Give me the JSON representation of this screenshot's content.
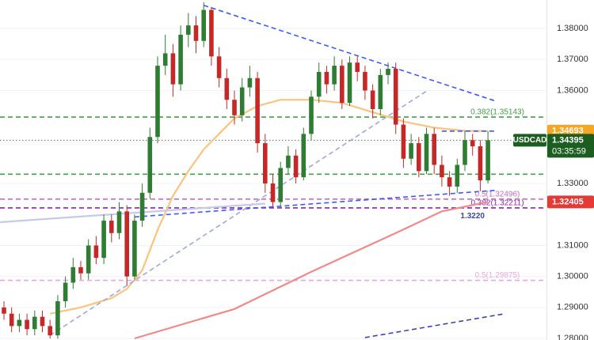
{
  "chart_data": {
    "type": "candlestick",
    "symbol": "USDCAD",
    "colors": {
      "up": "#2e7d32",
      "down": "#c62828"
    },
    "open": [
      1.29,
      1.288,
      1.284,
      1.286,
      1.283,
      1.287,
      1.284,
      1.281,
      1.292,
      1.298,
      1.303,
      1.301,
      1.31,
      1.306,
      1.318,
      1.314,
      1.321,
      1.3,
      1.318,
      1.327,
      1.345,
      1.368,
      1.372,
      1.362,
      1.378,
      1.381,
      1.376,
      1.386,
      1.371,
      1.364,
      1.357,
      1.352,
      1.361,
      1.364,
      1.343,
      1.33,
      1.324,
      1.335,
      1.339,
      1.332,
      1.346,
      1.358,
      1.366,
      1.362,
      1.368,
      1.356,
      1.369,
      1.366,
      1.36,
      1.354,
      1.365,
      1.367,
      1.349,
      1.338,
      1.343,
      1.334,
      1.346,
      1.336,
      1.332,
      1.329,
      1.336,
      1.344,
      1.342,
      1.331
    ],
    "high": [
      1.292,
      1.29,
      1.288,
      1.288,
      1.289,
      1.289,
      1.286,
      1.294,
      1.3,
      1.306,
      1.305,
      1.312,
      1.313,
      1.32,
      1.32,
      1.324,
      1.323,
      1.32,
      1.33,
      1.348,
      1.371,
      1.378,
      1.375,
      1.381,
      1.385,
      1.384,
      1.3885,
      1.387,
      1.374,
      1.367,
      1.36,
      1.364,
      1.368,
      1.366,
      1.346,
      1.333,
      1.337,
      1.342,
      1.341,
      1.348,
      1.36,
      1.369,
      1.368,
      1.371,
      1.37,
      1.371,
      1.371,
      1.368,
      1.362,
      1.367,
      1.369,
      1.369,
      1.351,
      1.346,
      1.345,
      1.348,
      1.348,
      1.339,
      1.334,
      1.338,
      1.347,
      1.346,
      1.344,
      1.3469
    ],
    "low": [
      1.286,
      1.282,
      1.282,
      1.281,
      1.281,
      1.282,
      1.28,
      1.28,
      1.29,
      1.296,
      1.299,
      1.299,
      1.304,
      1.304,
      1.311,
      1.312,
      1.297,
      1.299,
      1.316,
      1.325,
      1.343,
      1.365,
      1.358,
      1.36,
      1.374,
      1.372,
      1.374,
      1.368,
      1.361,
      1.354,
      1.349,
      1.35,
      1.358,
      1.34,
      1.327,
      1.3222,
      1.322,
      1.333,
      1.33,
      1.331,
      1.344,
      1.356,
      1.359,
      1.36,
      1.354,
      1.355,
      1.363,
      1.357,
      1.351,
      1.352,
      1.362,
      1.346,
      1.335,
      1.336,
      1.332,
      1.333,
      1.333,
      1.329,
      1.326,
      1.327,
      1.334,
      1.339,
      1.3275,
      1.33
    ],
    "close": [
      1.288,
      1.284,
      1.286,
      1.283,
      1.287,
      1.284,
      1.281,
      1.292,
      1.298,
      1.303,
      1.301,
      1.31,
      1.306,
      1.318,
      1.314,
      1.321,
      1.3,
      1.318,
      1.327,
      1.345,
      1.368,
      1.372,
      1.362,
      1.378,
      1.381,
      1.376,
      1.386,
      1.371,
      1.364,
      1.357,
      1.352,
      1.361,
      1.364,
      1.343,
      1.33,
      1.324,
      1.335,
      1.339,
      1.332,
      1.346,
      1.358,
      1.366,
      1.362,
      1.368,
      1.356,
      1.369,
      1.366,
      1.36,
      1.354,
      1.365,
      1.367,
      1.349,
      1.338,
      1.343,
      1.334,
      1.346,
      1.336,
      1.332,
      1.329,
      1.336,
      1.344,
      1.342,
      1.331,
      1.34395
    ],
    "ylim": [
      1.2795,
      1.3892
    ],
    "yticks": [
      {
        "value": 1.38,
        "label": "1.38000"
      },
      {
        "value": 1.37,
        "label": "1.37000"
      },
      {
        "value": 1.36,
        "label": "1.36000"
      },
      {
        "value": 1.33,
        "label": "1.33000"
      },
      {
        "value": 1.31,
        "label": "1.31000"
      },
      {
        "value": 1.3,
        "label": "1.30000"
      },
      {
        "value": 1.29,
        "label": "1.29000"
      },
      {
        "value": 1.28,
        "label": "1.28000"
      }
    ],
    "levels": [
      {
        "value": 1.35143,
        "label": "0.382(1.35143)",
        "color": "#43a047",
        "dash": "dashed"
      },
      {
        "value": 1.333,
        "color": "#43a047",
        "dash": "dashed"
      },
      {
        "value": 1.34395,
        "color": "#666666",
        "dash": "dotted"
      },
      {
        "value": 1.32496,
        "label": "0.5(1.32496)",
        "color": "#c86cc0",
        "dash": "dashed"
      },
      {
        "value": 1.32211,
        "label": "0.382(1.32211)",
        "color": "#8e24aa",
        "dash": "dashed"
      },
      {
        "value": 1.29875,
        "label": "0.5(1.29875)",
        "color": "#eaa6e4",
        "dash": "dashed"
      }
    ],
    "lines": [
      {
        "color": "#fbc47e",
        "dash": "solid",
        "x": [
          6,
          10,
          14,
          16,
          18,
          20,
          22,
          24,
          26,
          28,
          30,
          33,
          36,
          40,
          44,
          48,
          52,
          56,
          60,
          63
        ],
        "values": [
          1.288,
          1.29,
          1.293,
          1.296,
          1.302,
          1.315,
          1.326,
          1.334,
          1.341,
          1.346,
          1.351,
          1.355,
          1.357,
          1.357,
          1.356,
          1.353,
          1.35,
          1.348,
          1.347,
          1.3469
        ]
      },
      {
        "color": "#ef8a8a",
        "dash": "solid",
        "x": [
          17,
          30,
          40,
          51,
          57,
          63
        ],
        "values": [
          1.28,
          1.2895,
          1.3015,
          1.314,
          1.321,
          1.32405
        ]
      },
      {
        "color": "#3d5afe",
        "dash": "dashed",
        "x": [
          26,
          64
        ],
        "values": [
          1.3875,
          1.3566
        ]
      },
      {
        "color": "#3d5afe",
        "dash": "dashed",
        "x": [
          17,
          64
        ],
        "values": [
          1.3192,
          1.3278
        ]
      },
      {
        "color": "#3d5afe",
        "dash": "dashed",
        "x": [
          57,
          64
        ],
        "values": [
          1.3469,
          1.3469
        ]
      },
      {
        "color": "#3949ab",
        "dash": "dashed",
        "x": [
          47,
          65
        ],
        "values": [
          1.2803,
          1.2879
        ]
      },
      {
        "color": "#9fa8da",
        "dash": "dashed",
        "x": [
          6,
          55
        ],
        "values": [
          1.281,
          1.3598
        ]
      },
      {
        "color": "#c5cae9",
        "dash": "solid",
        "x": [
          -0.5,
          34
        ],
        "values": [
          1.3175,
          1.3235
        ]
      }
    ],
    "annotations": [
      {
        "value": 1.322,
        "label": "1.3220",
        "color": "#3949ab",
        "x": 61
      }
    ],
    "price_tags": [
      {
        "value": 1.34693,
        "label": "1.34693",
        "color": "#f5a623"
      },
      {
        "value": 1.34395,
        "label": "1.34395",
        "color": "#1b5e20",
        "countdown": "03:35:59"
      },
      {
        "value": 1.32405,
        "label": "1.32405",
        "color": "#e53935"
      }
    ]
  }
}
